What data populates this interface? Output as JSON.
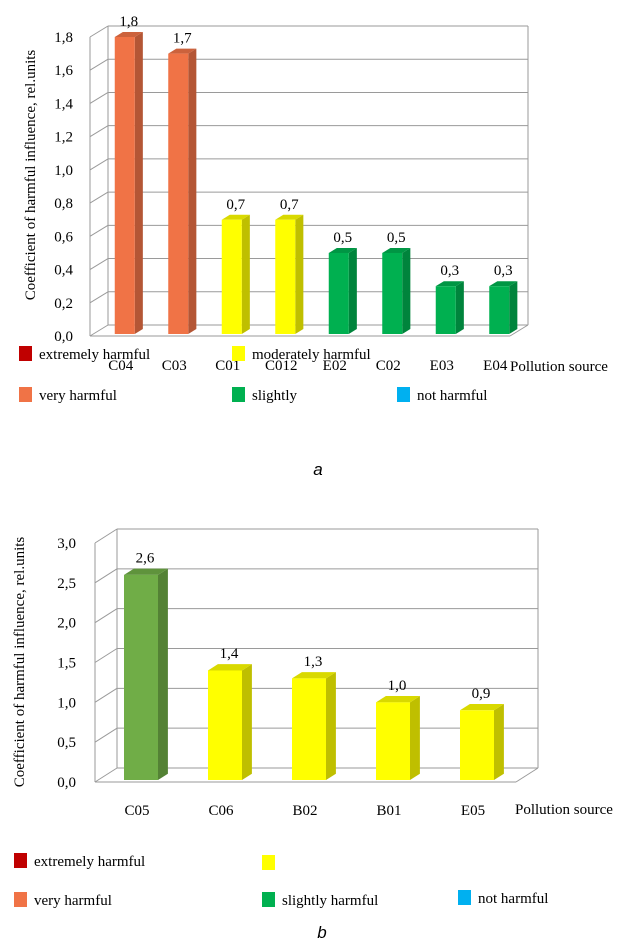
{
  "chart_data": [
    {
      "type": "bar",
      "ylabel": "Coefficient of harmful influence, rel.units",
      "xlabel": "Pollution source",
      "ylim": [
        0,
        1.8
      ],
      "yticks": [
        "0,0",
        "0,2",
        "0,4",
        "0,6",
        "0,8",
        "1,0",
        "1,2",
        "1,4",
        "1,6",
        "1,8"
      ],
      "grid": true,
      "categories": [
        "C04",
        "C03",
        "C01",
        "C012",
        "E02",
        "C02",
        "E03",
        "E04"
      ],
      "values": [
        1.8,
        1.7,
        0.7,
        0.7,
        0.5,
        0.5,
        0.3,
        0.3
      ],
      "value_labels": [
        "1,8",
        "1,7",
        "0,7",
        "0,7",
        "0,5",
        "0,5",
        "0,3",
        "0,3"
      ],
      "bar_colors": [
        "#f07346",
        "#f07346",
        "#ffff00",
        "#ffff00",
        "#00b050",
        "#00b050",
        "#00b050",
        "#00b050"
      ],
      "legend": [
        {
          "label": "extremely harmful",
          "color": "#c00000"
        },
        {
          "label": "moderately harmful",
          "color": "#ffff00"
        },
        {
          "label": "very harmful",
          "color": "#f07346"
        },
        {
          "label": "slightly",
          "color": "#00b050"
        },
        {
          "label": "not harmful",
          "color": "#00b0f0"
        }
      ],
      "caption": "a"
    },
    {
      "type": "bar",
      "ylabel": "Coefficient of harmful influence, rel.units",
      "xlabel": "Pollution source",
      "ylim": [
        0,
        3.0
      ],
      "yticks": [
        "0,0",
        "0,5",
        "1,0",
        "1,5",
        "2,0",
        "2,5",
        "3,0"
      ],
      "grid": true,
      "categories": [
        "C05",
        "C06",
        "B02",
        "B01",
        "E05"
      ],
      "values": [
        2.6,
        1.4,
        1.3,
        1.0,
        0.9
      ],
      "value_labels": [
        "2,6",
        "1,4",
        "1,3",
        "1,0",
        "0,9"
      ],
      "bar_colors": [
        "#70ad47",
        "#ffff00",
        "#ffff00",
        "#ffff00",
        "#ffff00"
      ],
      "legend": [
        {
          "label": "extremely harmful",
          "color": "#c00000"
        },
        {
          "label": "",
          "color": "#ffff00"
        },
        {
          "label": "very harmful",
          "color": "#f07346"
        },
        {
          "label": "slightly harmful",
          "color": "#00b050"
        },
        {
          "label": "not harmful",
          "color": "#00b0f0"
        }
      ],
      "caption": "b"
    }
  ]
}
